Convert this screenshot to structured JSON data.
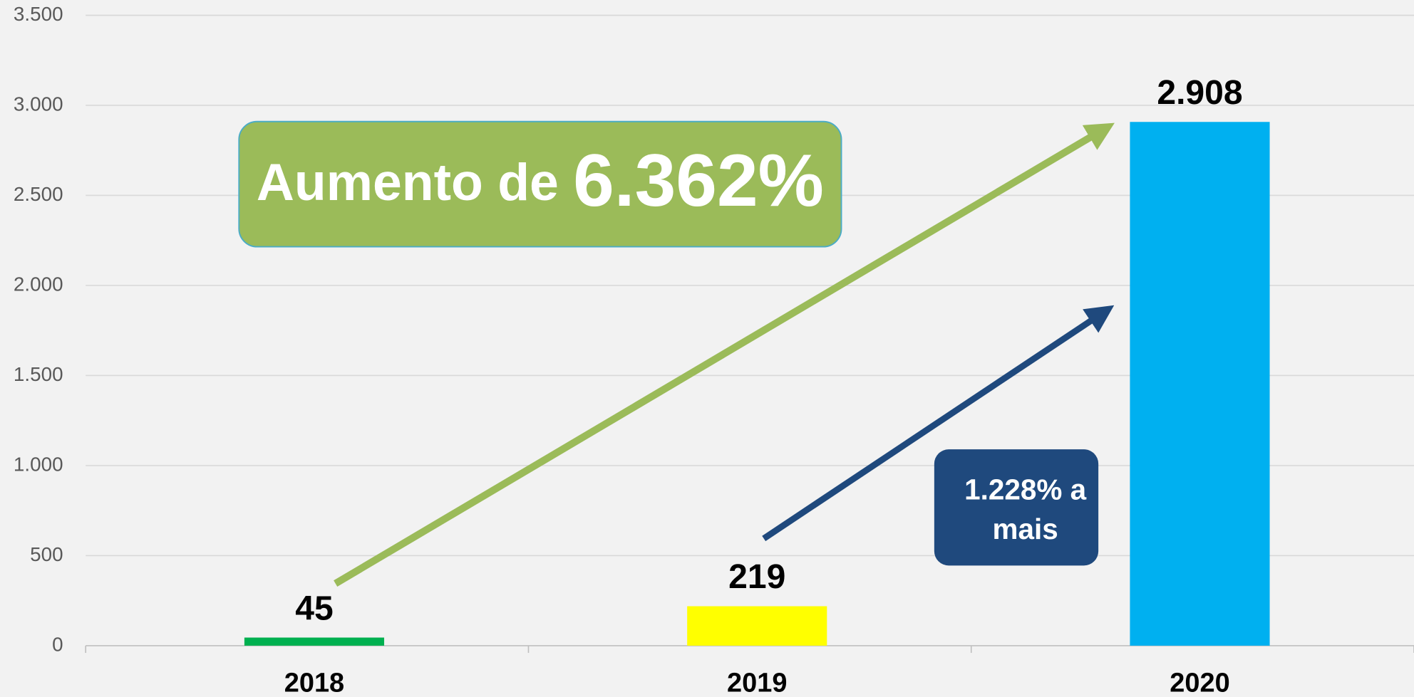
{
  "chart_data": {
    "type": "bar",
    "categories": [
      "2018",
      "2019",
      "2020"
    ],
    "values": [
      45,
      219,
      2908
    ],
    "value_labels": [
      "45",
      "219",
      "2.908"
    ],
    "colors": [
      "#00b050",
      "#ffff00",
      "#00b0f0"
    ],
    "ylim": [
      0,
      3500
    ],
    "yticks": [
      0,
      500,
      {
        "value": 1000,
        "label": "1.000"
      },
      {
        "value": 1500,
        "label": "1.500"
      },
      {
        "value": 2000,
        "label": "2.000"
      },
      {
        "value": 2500,
        "label": "2.500"
      },
      {
        "value": 3000,
        "label": "3.000"
      },
      {
        "value": 3500,
        "label": "3.500"
      }
    ],
    "grid": true,
    "annotations": {
      "increase": {
        "prefix": "Aumento de",
        "value": "6.362%"
      },
      "difference": {
        "lines": [
          "1.228% a",
          "mais"
        ]
      }
    }
  }
}
